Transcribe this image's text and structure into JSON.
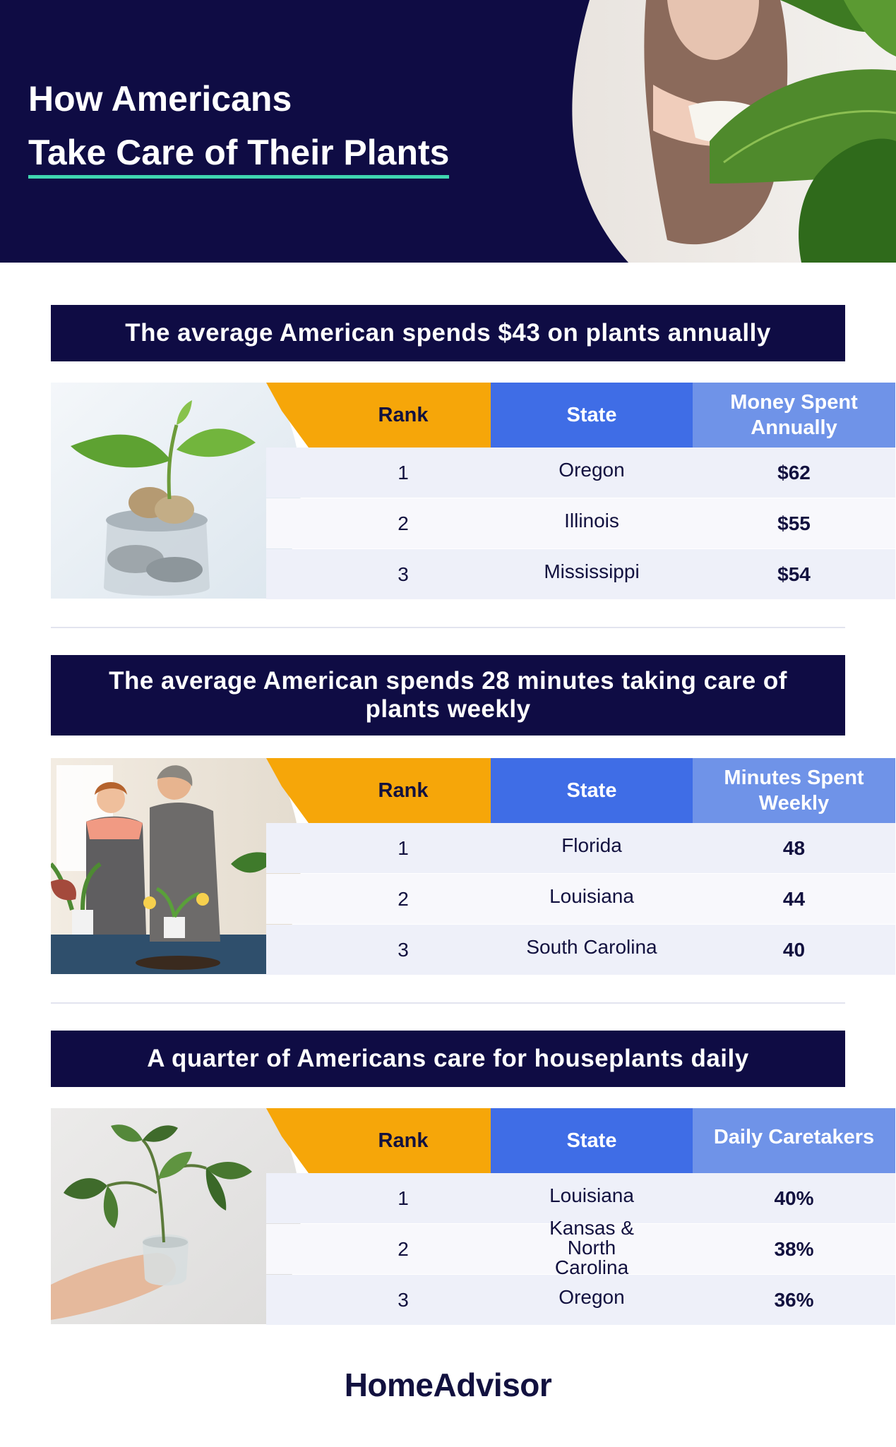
{
  "header": {
    "title_line1": "How Americans",
    "title_line2": "Take Care of Their Plants",
    "accent_color": "#3fd6b0",
    "background_color": "#0f0c44"
  },
  "sections": [
    {
      "banner": "The average American spends $43 on plants annually",
      "photo": "plant-in-coin-jar-icon",
      "headers": {
        "rank": "Rank",
        "state": "State",
        "value": "Money Spent Annually"
      },
      "rows": [
        {
          "rank": "1",
          "state": "Oregon",
          "value": "$62"
        },
        {
          "rank": "2",
          "state": "Illinois",
          "value": "$55"
        },
        {
          "rank": "3",
          "state": "Mississippi",
          "value": "$54"
        }
      ]
    },
    {
      "banner": "The average American spends 28 minutes taking care of plants weekly",
      "photo": "people-potting-plants-icon",
      "headers": {
        "rank": "Rank",
        "state": "State",
        "value": "Minutes Spent Weekly"
      },
      "rows": [
        {
          "rank": "1",
          "state": "Florida",
          "value": "48"
        },
        {
          "rank": "2",
          "state": "Louisiana",
          "value": "44"
        },
        {
          "rank": "3",
          "state": "South Carolina",
          "value": "40"
        }
      ]
    },
    {
      "banner": "A quarter of Americans care for houseplants daily",
      "photo": "hand-holding-cutting-icon",
      "headers": {
        "rank": "Rank",
        "state": "State",
        "value": "Daily Caretakers"
      },
      "rows": [
        {
          "rank": "1",
          "state": "Louisiana",
          "value": "40%"
        },
        {
          "rank": "2",
          "state": "Kansas & North Carolina",
          "value": "38%"
        },
        {
          "rank": "3",
          "state": "Oregon",
          "value": "36%"
        }
      ]
    }
  ],
  "footer": {
    "brand": "HomeAdvisor"
  },
  "colors": {
    "rank_header": "#f6a609",
    "state_header": "#3f6de6",
    "value_header": "#6f93e8",
    "row_light": "#eef0f9",
    "row_alt": "#f8f8fc"
  }
}
